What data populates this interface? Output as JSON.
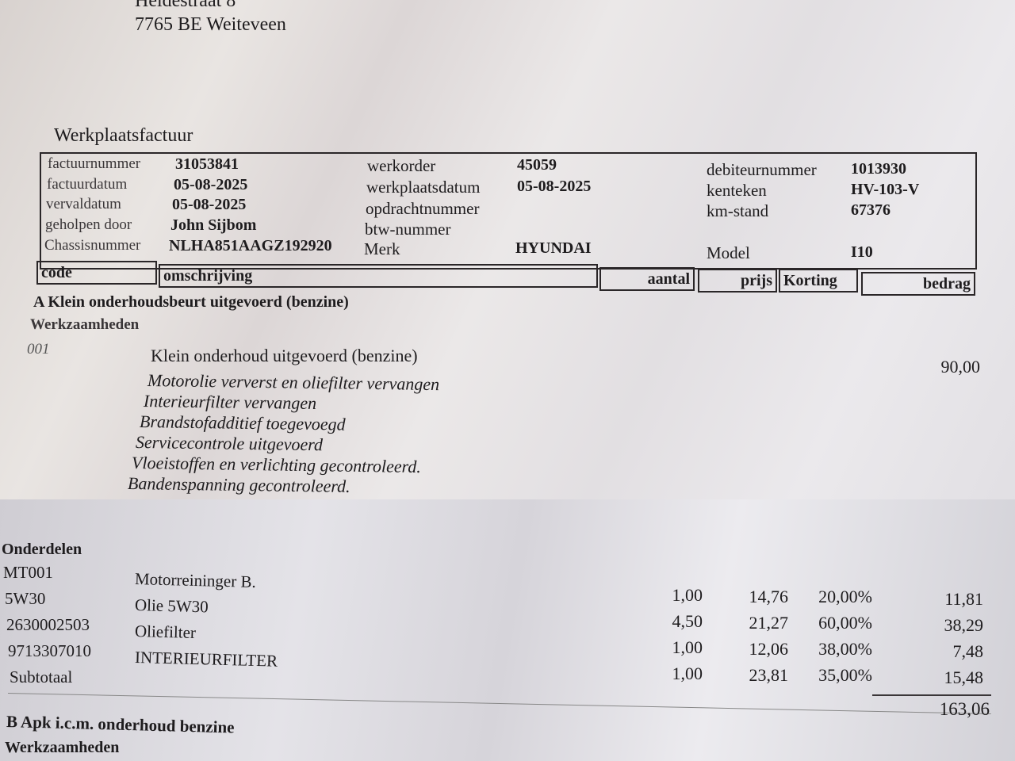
{
  "address": {
    "street": "Heidestraat 8",
    "city": "7765 BE Weiteveen"
  },
  "title": "Werkplaatsfactuur",
  "info": {
    "col1": [
      {
        "label": "factuurnummer",
        "value": "31053841"
      },
      {
        "label": "factuurdatum",
        "value": "05-08-2025"
      },
      {
        "label": "vervaldatum",
        "value": "05-08-2025"
      },
      {
        "label": "geholpen door",
        "value": "John Sijbom"
      },
      {
        "label": "Chassisnummer",
        "value": "NLHA851AAGZ192920"
      }
    ],
    "col2": [
      {
        "label": "werkorder",
        "value": "45059"
      },
      {
        "label": "werkplaatsdatum",
        "value": "05-08-2025"
      },
      {
        "label": "opdrachtnummer",
        "value": ""
      },
      {
        "label": "btw-nummer",
        "value": ""
      },
      {
        "label": "Merk",
        "value": "HYUNDAI"
      }
    ],
    "col3": [
      {
        "label": "debiteurnummer",
        "value": "1013930"
      },
      {
        "label": "kenteken",
        "value": "HV-103-V"
      },
      {
        "label": "km-stand",
        "value": "67376"
      },
      {
        "label": "Model",
        "value": "I10"
      }
    ]
  },
  "columns": {
    "code": "code",
    "omschrijving": "omschrijving",
    "aantal": "aantal",
    "prijs": "prijs",
    "korting": "Korting",
    "bedrag": "bedrag"
  },
  "sectionA": {
    "title": "A Klein onderhoudsbeurt uitgevoerd (benzine)",
    "werkzaamheden": "Werkzaamheden",
    "code": "001",
    "description": "Klein onderhoud uitgevoerd (benzine)",
    "amount": "90,00",
    "details": [
      "Motorolie ververst en oliefilter vervangen",
      "Interieurfilter vervangen",
      "Brandstofadditief toegevoegd",
      "Servicecontrole uitgevoerd",
      "Vloeistoffen en verlichting gecontroleerd.",
      "Bandenspanning gecontroleerd."
    ]
  },
  "onderdelen": {
    "title": "Onderdelen",
    "rows": [
      {
        "code": "MT001",
        "desc": "Motorreininger B.",
        "aantal": "",
        "prijs": "",
        "korting": "",
        "bedrag": ""
      },
      {
        "code": "5W30",
        "desc": "Olie 5W30",
        "aantal": "1,00",
        "prijs": "14,76",
        "korting": "20,00%",
        "bedrag": "11,81"
      },
      {
        "code": "2630002503",
        "desc": "Oliefilter",
        "aantal": "4,50",
        "prijs": "21,27",
        "korting": "60,00%",
        "bedrag": "38,29"
      },
      {
        "code": "9713307010",
        "desc": "INTERIEURFILTER",
        "aantal": "1,00",
        "prijs": "12,06",
        "korting": "38,00%",
        "bedrag": "7,48"
      },
      {
        "code": "Subtotaal",
        "desc": "",
        "aantal": "1,00",
        "prijs": "23,81",
        "korting": "35,00%",
        "bedrag": "15,48"
      }
    ],
    "total": "163,06"
  },
  "sectionB": {
    "title": "B Apk i.c.m. onderhoud benzine",
    "werkzaamheden": "Werkzaamheden"
  }
}
